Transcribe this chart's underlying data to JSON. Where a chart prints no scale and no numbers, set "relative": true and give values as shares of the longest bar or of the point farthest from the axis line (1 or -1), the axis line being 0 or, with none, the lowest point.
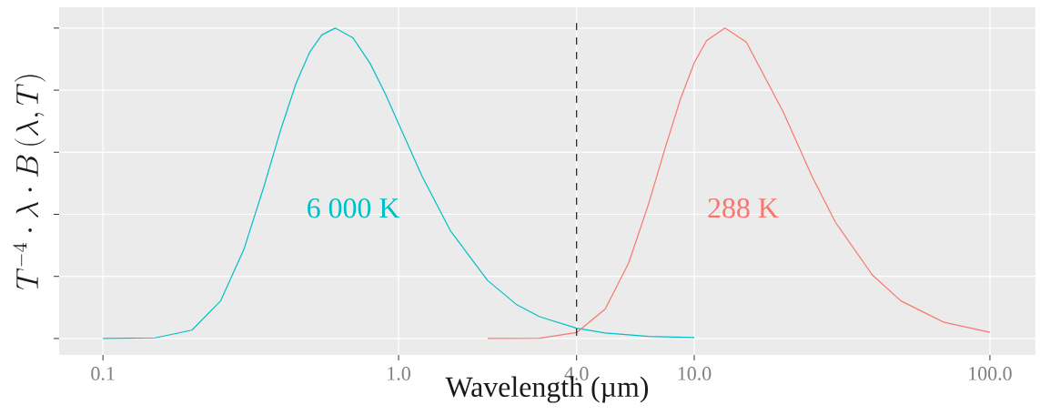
{
  "chart_data": {
    "type": "line",
    "xlabel": "Wavelength (µm)",
    "ylabel": "T^{-4} \\cdot \\lambda \\cdot B\\left(\\lambda, T\\right)",
    "relative": true,
    "log": "x",
    "grid": true,
    "legend": false,
    "marker": "none",
    "line_style": "solid",
    "xlim": [
      0.0711,
      142.6
    ],
    "xticks": [
      {
        "value": 0.1,
        "label": "0.1"
      },
      {
        "value": 1,
        "label": "1.0"
      },
      {
        "value": 4,
        "label": "4.0"
      },
      {
        "value": 10,
        "label": "10.0"
      },
      {
        "value": 100,
        "label": "100.0"
      }
    ],
    "ref_lines": [
      {
        "axis": "x",
        "value": 4,
        "color": "#1a1a1a",
        "line_style": "dashed"
      }
    ],
    "series": [
      {
        "name": "6 000 K",
        "color": "#00bfc4",
        "x": [
          0.1,
          0.15,
          0.2,
          0.25,
          0.3,
          0.35,
          0.4,
          0.45,
          0.5,
          0.55,
          0.61,
          0.7,
          0.8,
          0.9,
          1.0,
          1.2,
          1.5,
          2.0,
          2.5,
          3.0,
          4.0,
          5.0,
          7.0,
          10.0
        ],
        "values": [
          0,
          0.002,
          0.027,
          0.121,
          0.288,
          0.488,
          0.675,
          0.822,
          0.922,
          0.978,
          1.0,
          0.969,
          0.887,
          0.79,
          0.692,
          0.523,
          0.346,
          0.187,
          0.11,
          0.07,
          0.033,
          0.018,
          0.007,
          0.003
        ]
      },
      {
        "name": "288 K",
        "color": "#f8766d",
        "x": [
          2.0,
          3.0,
          4.0,
          5.0,
          6.0,
          7.0,
          8.0,
          9.0,
          10.0,
          11.0,
          12.7,
          15.0,
          20.0,
          25.0,
          30.0,
          40.0,
          50.0,
          70.0,
          100.0
        ],
        "values": [
          0,
          0.001,
          0.019,
          0.095,
          0.243,
          0.432,
          0.618,
          0.774,
          0.888,
          0.959,
          1.0,
          0.955,
          0.73,
          0.523,
          0.375,
          0.205,
          0.121,
          0.052,
          0.02
        ]
      }
    ]
  }
}
